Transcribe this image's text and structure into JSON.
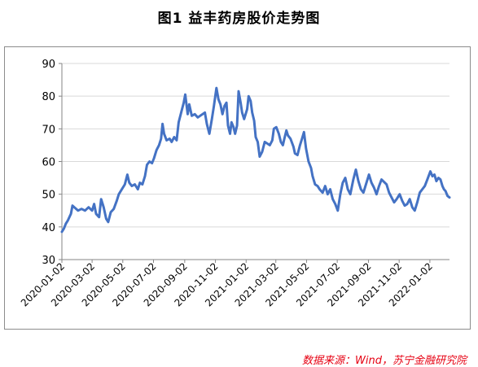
{
  "page": {
    "title": "图1  益丰药房股价走势图",
    "source": "数据来源：Wind，苏宁金融研究院"
  },
  "colors": {
    "line": "#4472c4",
    "grid": "#d9d9d9",
    "axis": "#868686",
    "source": "#e60012"
  },
  "chart_data": {
    "type": "line",
    "title": "图1  益丰药房股价走势图",
    "xlabel": "",
    "ylabel": "",
    "ylim": [
      30,
      90
    ],
    "yticks": [
      30,
      40,
      50,
      60,
      70,
      80,
      90
    ],
    "xlim": [
      "2020-01-02",
      "2022-02-10"
    ],
    "xticks": [
      "2020-01-02",
      "2020-03-02",
      "2020-05-02",
      "2020-07-02",
      "2020-09-02",
      "2020-11-02",
      "2021-01-02",
      "2021-03-02",
      "2021-05-02",
      "2021-07-02",
      "2021-09-02",
      "2021-11-02",
      "2022-01-02"
    ],
    "grid": true,
    "series": [
      {
        "name": "",
        "points": [
          [
            "2020-01-02",
            38.5
          ],
          [
            "2020-01-06",
            39.5
          ],
          [
            "2020-01-10",
            41
          ],
          [
            "2020-01-14",
            42
          ],
          [
            "2020-01-20",
            44
          ],
          [
            "2020-01-23",
            46.5
          ],
          [
            "2020-02-03",
            45
          ],
          [
            "2020-02-10",
            45.5
          ],
          [
            "2020-02-17",
            45
          ],
          [
            "2020-02-24",
            46
          ],
          [
            "2020-03-02",
            45
          ],
          [
            "2020-03-06",
            47
          ],
          [
            "2020-03-10",
            44
          ],
          [
            "2020-03-16",
            43
          ],
          [
            "2020-03-20",
            48.5
          ],
          [
            "2020-03-25",
            46
          ],
          [
            "2020-03-30",
            42.5
          ],
          [
            "2020-04-03",
            41.5
          ],
          [
            "2020-04-08",
            44.5
          ],
          [
            "2020-04-14",
            45.5
          ],
          [
            "2020-04-20",
            48
          ],
          [
            "2020-04-24",
            50
          ],
          [
            "2020-04-30",
            51.5
          ],
          [
            "2020-05-06",
            53
          ],
          [
            "2020-05-11",
            56
          ],
          [
            "2020-05-15",
            53.5
          ],
          [
            "2020-05-20",
            52.5
          ],
          [
            "2020-05-26",
            53
          ],
          [
            "2020-06-01",
            51.5
          ],
          [
            "2020-06-05",
            53.5
          ],
          [
            "2020-06-10",
            53
          ],
          [
            "2020-06-15",
            55.5
          ],
          [
            "2020-06-19",
            59
          ],
          [
            "2020-06-24",
            60
          ],
          [
            "2020-06-29",
            59.5
          ],
          [
            "2020-07-03",
            61
          ],
          [
            "2020-07-08",
            63.5
          ],
          [
            "2020-07-13",
            65
          ],
          [
            "2020-07-17",
            67
          ],
          [
            "2020-07-20",
            71.5
          ],
          [
            "2020-07-23",
            68.5
          ],
          [
            "2020-07-28",
            66.5
          ],
          [
            "2020-08-03",
            67
          ],
          [
            "2020-08-07",
            66
          ],
          [
            "2020-08-12",
            67.5
          ],
          [
            "2020-08-17",
            66.5
          ],
          [
            "2020-08-21",
            72
          ],
          [
            "2020-08-26",
            75
          ],
          [
            "2020-08-31",
            78
          ],
          [
            "2020-09-03",
            80.5
          ],
          [
            "2020-09-08",
            74.5
          ],
          [
            "2020-09-11",
            77.5
          ],
          [
            "2020-09-16",
            74
          ],
          [
            "2020-09-22",
            74.5
          ],
          [
            "2020-09-28",
            73.5
          ],
          [
            "2020-10-12",
            75
          ],
          [
            "2020-10-16",
            71.5
          ],
          [
            "2020-10-21",
            68.5
          ],
          [
            "2020-10-26",
            73
          ],
          [
            "2020-10-30",
            77
          ],
          [
            "2020-11-04",
            82.5
          ],
          [
            "2020-11-08",
            79
          ],
          [
            "2020-11-12",
            77.5
          ],
          [
            "2020-11-16",
            74.5
          ],
          [
            "2020-11-20",
            77
          ],
          [
            "2020-11-24",
            78
          ],
          [
            "2020-11-27",
            71
          ],
          [
            "2020-12-01",
            68.5
          ],
          [
            "2020-12-04",
            72
          ],
          [
            "2020-12-08",
            70.5
          ],
          [
            "2020-12-11",
            68.5
          ],
          [
            "2020-12-15",
            71
          ],
          [
            "2020-12-18",
            81.5
          ],
          [
            "2020-12-22",
            78
          ],
          [
            "2020-12-25",
            75
          ],
          [
            "2020-12-29",
            73
          ],
          [
            "2021-01-04",
            76
          ],
          [
            "2021-01-07",
            80
          ],
          [
            "2021-01-11",
            78.5
          ],
          [
            "2021-01-14",
            75
          ],
          [
            "2021-01-18",
            72.5
          ],
          [
            "2021-01-21",
            67.5
          ],
          [
            "2021-01-25",
            66
          ],
          [
            "2021-01-29",
            61.5
          ],
          [
            "2021-02-03",
            63
          ],
          [
            "2021-02-08",
            66
          ],
          [
            "2021-02-18",
            65
          ],
          [
            "2021-02-23",
            66.5
          ],
          [
            "2021-02-26",
            70
          ],
          [
            "2021-03-03",
            70.5
          ],
          [
            "2021-03-08",
            68.5
          ],
          [
            "2021-03-12",
            66
          ],
          [
            "2021-03-16",
            65
          ],
          [
            "2021-03-19",
            67
          ],
          [
            "2021-03-23",
            69.5
          ],
          [
            "2021-03-26",
            68
          ],
          [
            "2021-03-31",
            67
          ],
          [
            "2021-04-06",
            64.5
          ],
          [
            "2021-04-09",
            62.5
          ],
          [
            "2021-04-14",
            62
          ],
          [
            "2021-04-19",
            65
          ],
          [
            "2021-04-23",
            67
          ],
          [
            "2021-04-27",
            69
          ],
          [
            "2021-05-01",
            64
          ],
          [
            "2021-05-06",
            60
          ],
          [
            "2021-05-11",
            58
          ],
          [
            "2021-05-14",
            55.5
          ],
          [
            "2021-05-19",
            53
          ],
          [
            "2021-05-24",
            52.5
          ],
          [
            "2021-05-28",
            51.5
          ],
          [
            "2021-06-03",
            50.5
          ],
          [
            "2021-06-08",
            52.5
          ],
          [
            "2021-06-13",
            50
          ],
          [
            "2021-06-18",
            51.5
          ],
          [
            "2021-06-23",
            48.5
          ],
          [
            "2021-06-28",
            47
          ],
          [
            "2021-07-03",
            45
          ],
          [
            "2021-07-08",
            50
          ],
          [
            "2021-07-13",
            53.5
          ],
          [
            "2021-07-18",
            55
          ],
          [
            "2021-07-23",
            51.5
          ],
          [
            "2021-07-28",
            50
          ],
          [
            "2021-08-03",
            54.5
          ],
          [
            "2021-08-08",
            57.5
          ],
          [
            "2021-08-13",
            54
          ],
          [
            "2021-08-18",
            51.5
          ],
          [
            "2021-08-23",
            50.5
          ],
          [
            "2021-08-28",
            53
          ],
          [
            "2021-09-03",
            56
          ],
          [
            "2021-09-08",
            53.5
          ],
          [
            "2021-09-13",
            52
          ],
          [
            "2021-09-18",
            50
          ],
          [
            "2021-09-23",
            52.5
          ],
          [
            "2021-09-28",
            54.5
          ],
          [
            "2021-10-08",
            53
          ],
          [
            "2021-10-13",
            50.5
          ],
          [
            "2021-10-18",
            49
          ],
          [
            "2021-10-23",
            47.5
          ],
          [
            "2021-10-28",
            48.5
          ],
          [
            "2021-11-03",
            50
          ],
          [
            "2021-11-08",
            48
          ],
          [
            "2021-11-13",
            46.5
          ],
          [
            "2021-11-18",
            47
          ],
          [
            "2021-11-23",
            48.5
          ],
          [
            "2021-11-28",
            46
          ],
          [
            "2021-12-03",
            45
          ],
          [
            "2021-12-08",
            47.5
          ],
          [
            "2021-12-13",
            50.5
          ],
          [
            "2021-12-18",
            51.5
          ],
          [
            "2021-12-23",
            52.5
          ],
          [
            "2021-12-28",
            54.5
          ],
          [
            "2022-01-03",
            57
          ],
          [
            "2022-01-07",
            55.5
          ],
          [
            "2022-01-11",
            56
          ],
          [
            "2022-01-15",
            54
          ],
          [
            "2022-01-19",
            55
          ],
          [
            "2022-01-23",
            54.5
          ],
          [
            "2022-01-27",
            52.5
          ],
          [
            "2022-01-30",
            51.5
          ],
          [
            "2022-02-02",
            51
          ],
          [
            "2022-02-06",
            49.5
          ],
          [
            "2022-02-10",
            49
          ]
        ]
      }
    ]
  }
}
